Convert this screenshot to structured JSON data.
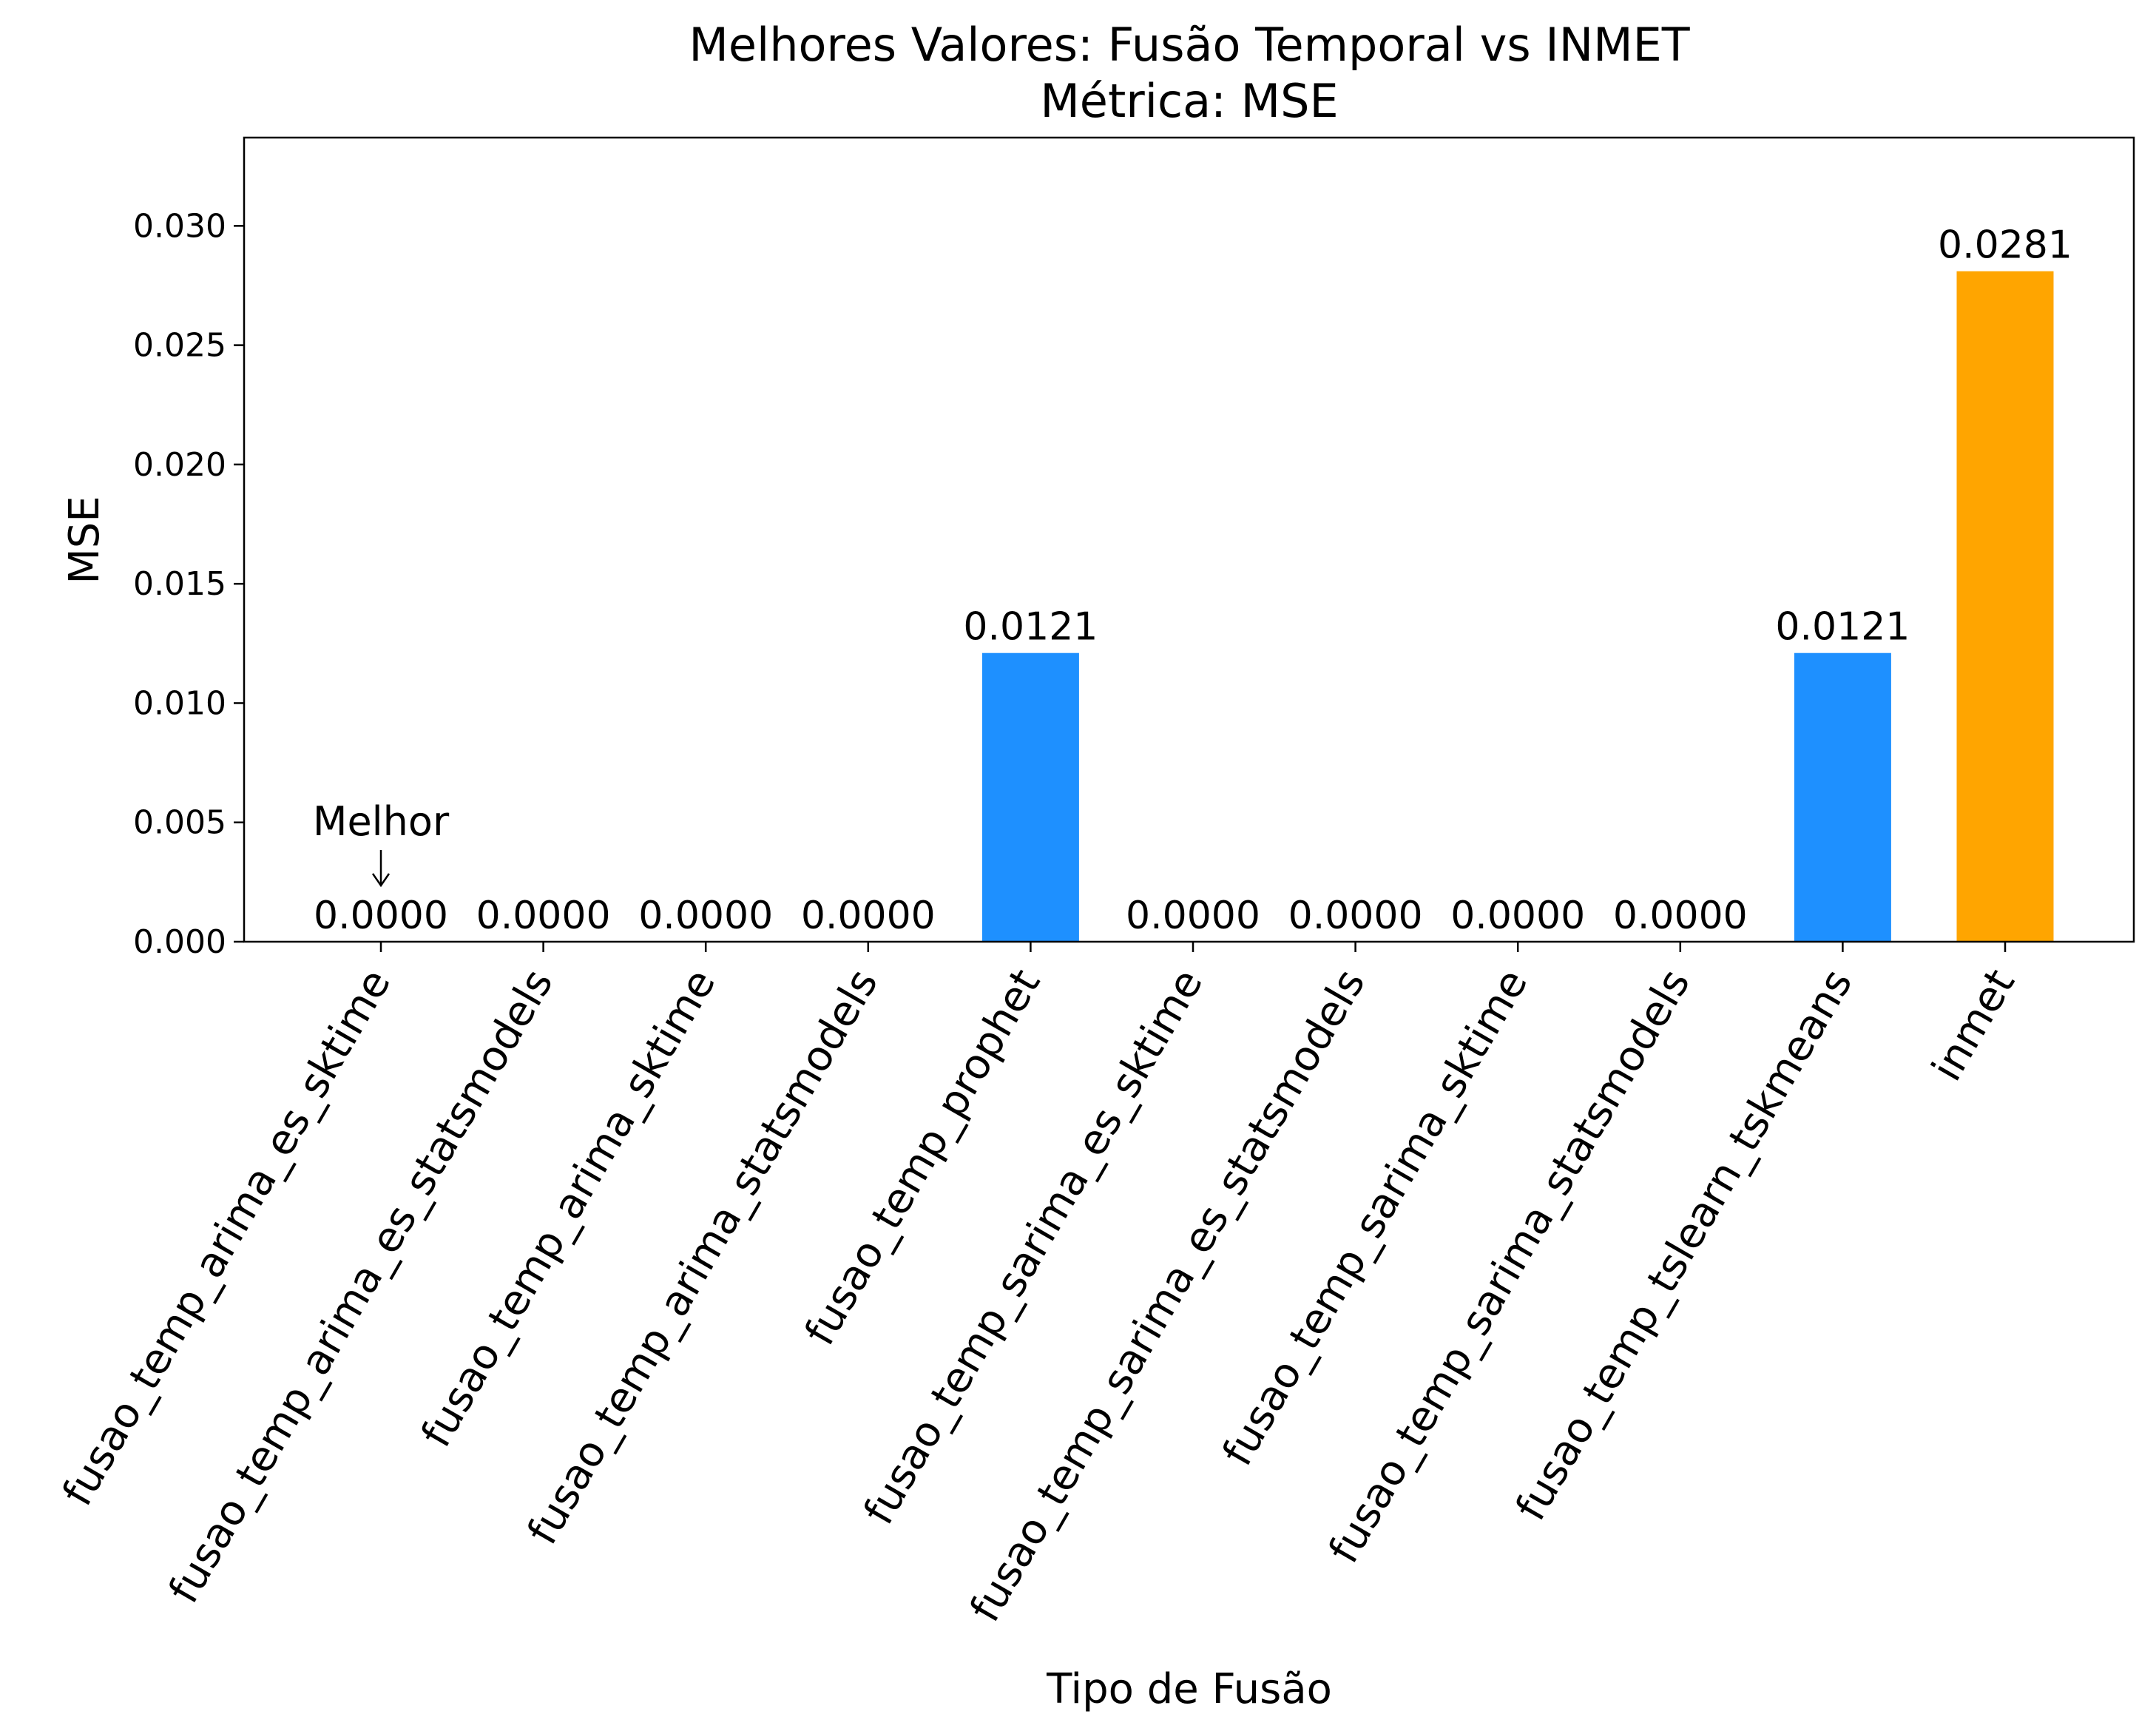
{
  "chart_data": {
    "type": "bar",
    "title": "Melhores Valores: Fusão Temporal vs INMET",
    "subtitle": "Métrica: MSE",
    "xlabel": "Tipo de Fusão",
    "ylabel": "MSE",
    "ylim": [
      0,
      0.0337
    ],
    "yticks": [
      0.0,
      0.005,
      0.01,
      0.015,
      0.02,
      0.025,
      0.03
    ],
    "ytick_labels": [
      "0.000",
      "0.005",
      "0.010",
      "0.015",
      "0.020",
      "0.025",
      "0.030"
    ],
    "grid": false,
    "legend": "none",
    "categories": [
      "fusao_temp_arima_es_sktime",
      "fusao_temp_arima_es_statsmodels",
      "fusao_temp_arima_sktime",
      "fusao_temp_arima_statsmodels",
      "fusao_temp_prophet",
      "fusao_temp_sarima_es_sktime",
      "fusao_temp_sarima_es_statsmodels",
      "fusao_temp_sarima_sktime",
      "fusao_temp_sarima_statsmodels",
      "fusao_temp_tslearn_tskmeans",
      "inmet"
    ],
    "values": [
      0.0,
      0.0,
      0.0,
      0.0,
      0.0121,
      0.0,
      0.0,
      0.0,
      0.0,
      0.0121,
      0.0281
    ],
    "value_labels": [
      "0.0000",
      "0.0000",
      "0.0000",
      "0.0000",
      "0.0121",
      "0.0000",
      "0.0000",
      "0.0000",
      "0.0000",
      "0.0121",
      "0.0281"
    ],
    "bar_colors": [
      "#1e90ff",
      "#1e90ff",
      "#1e90ff",
      "#1e90ff",
      "#1e90ff",
      "#1e90ff",
      "#1e90ff",
      "#1e90ff",
      "#1e90ff",
      "#1e90ff",
      "#ffa500"
    ],
    "highlight_label_color": "#008000",
    "annotation": {
      "text": "Melhor",
      "category_index": 0,
      "arrow": "↓"
    }
  }
}
